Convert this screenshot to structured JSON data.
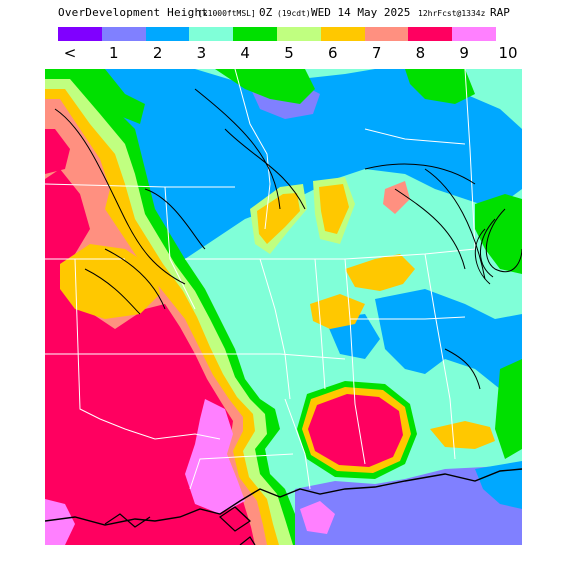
{
  "header": {
    "title": "OverDevelopment Height",
    "units": "[x1000ftMSL]",
    "valid_time": "0Z",
    "valid_local": "(19cdt)",
    "valid_date": "WED 14 May 2025",
    "forecast": "12hrFcst@1334z",
    "model": "RAP"
  },
  "legend": {
    "labels": [
      "<",
      "1",
      "2",
      "3",
      "4",
      "5",
      "6",
      "7",
      "8",
      "9",
      "10"
    ],
    "colors": [
      "#8000ff",
      "#8080ff",
      "#00a8ff",
      "#80ffd8",
      "#00e000",
      "#c0ff80",
      "#ffc800",
      "#ff9080",
      "#ff0060",
      "#ff80ff"
    ]
  },
  "map": {
    "colors": {
      "lt1": "#8000ff",
      "c1": "#8080ff",
      "c2": "#00a8ff",
      "c3": "#80ffd8",
      "c4": "#00e000",
      "c5": "#c0ff80",
      "c6": "#ffc800",
      "c7": "#ff9080",
      "c8": "#ff0060",
      "c9": "#ff80ff",
      "borders": "#ffffff",
      "contours": "#000000"
    }
  }
}
